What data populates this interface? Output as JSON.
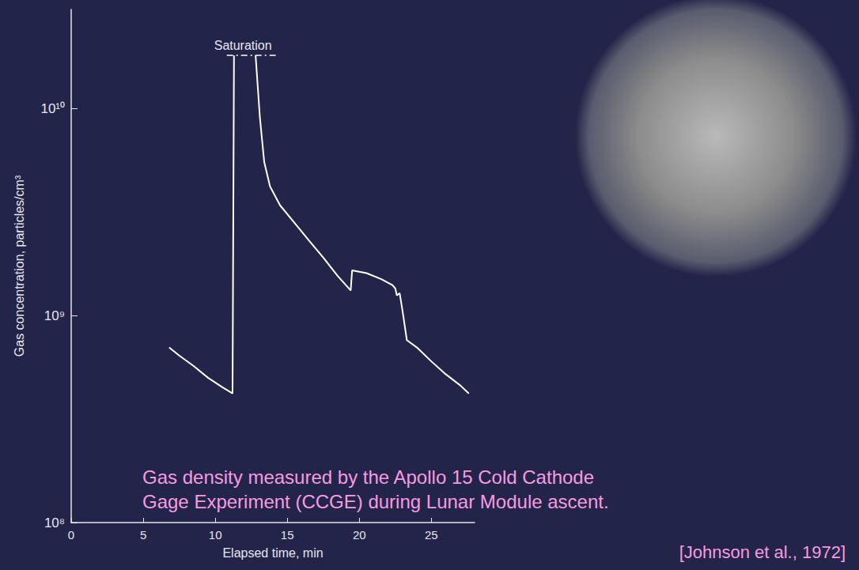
{
  "chart_data": {
    "type": "line",
    "caption": [
      "Gas density measured by the Apollo 15 Cold Cathode",
      "Gage Experiment (CCGE) during Lunar Module ascent."
    ],
    "source": "[Johnson et al., 1972]",
    "x_label": "Elapsed time, min",
    "y_label": "Gas concentration, particles/cm³",
    "x": [
      6.8,
      7.5,
      8.5,
      9.5,
      10.5,
      11.2,
      11.3,
      12.0,
      12.8,
      13.1,
      13.4,
      13.8,
      14.5,
      15.5,
      16.5,
      17.5,
      18.5,
      19.4,
      19.5,
      20.5,
      21.5,
      22.3,
      22.5,
      22.6,
      22.8,
      23.0,
      23.3,
      24,
      25,
      26,
      27,
      27.6
    ],
    "values": [
      700000000.0,
      640000000.0,
      570000000.0,
      500000000.0,
      450000000.0,
      420000000.0,
      18000000000.0,
      null,
      18000000000.0,
      9000000000.0,
      5500000000.0,
      4200000000.0,
      3400000000.0,
      2800000000.0,
      2300000000.0,
      1900000000.0,
      1550000000.0,
      1320000000.0,
      1650000000.0,
      1600000000.0,
      1500000000.0,
      1400000000.0,
      1350000000.0,
      1250000000.0,
      1280000000.0,
      1050000000.0,
      760000000.0,
      700000000.0,
      600000000.0,
      520000000.0,
      460000000.0,
      420000000.0
    ],
    "color": "#ffffff",
    "xlim": [
      0,
      28
    ],
    "xticks": [
      0,
      5,
      10,
      15,
      20,
      25
    ],
    "ylim": [
      100000000,
      30000000000
    ],
    "yticks": [
      {
        "value": 100000000,
        "label": "10⁸"
      },
      {
        "value": 1000000000,
        "label": "10⁹"
      },
      {
        "value": 10000000000,
        "label": "10¹⁰"
      }
    ],
    "log": "y",
    "grid": false,
    "annotations": [
      {
        "text": "Saturation",
        "y": 18000000000,
        "x": [
          10.8,
          14.2
        ]
      }
    ]
  }
}
